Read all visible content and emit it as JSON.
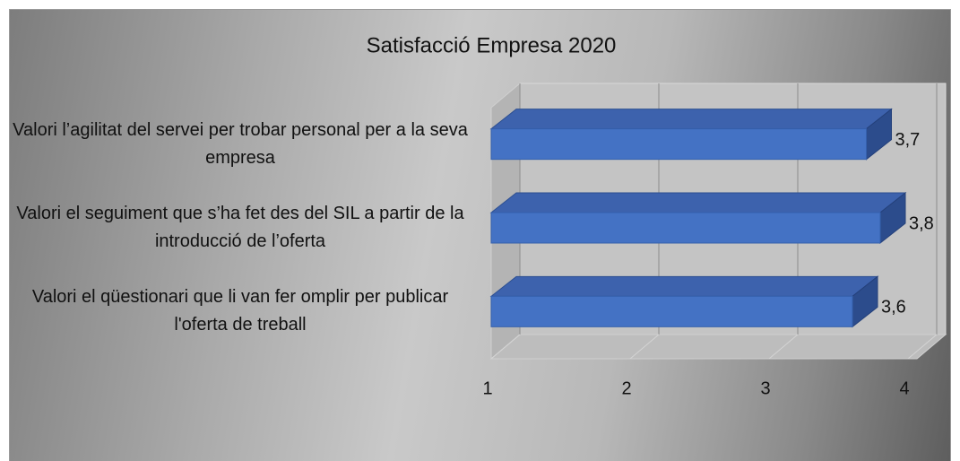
{
  "chart_data": {
    "type": "bar3d_horizontal",
    "title": "Satisfacció Empresa 2020",
    "categories": [
      "Valori  l’agilitat del servei per trobar personal per a la seva empresa",
      "Valori el seguiment que s’ha fet des del SIL a partir de la introducció de l’oferta",
      "Valori el qüestionari que li van fer omplir per publicar l'oferta de treball"
    ],
    "values": [
      3.7,
      3.8,
      3.6
    ],
    "value_labels": [
      "3,7",
      "3,8",
      "3,6"
    ],
    "color": "#4472c4",
    "xlim": [
      1,
      4
    ],
    "xticks": [
      1,
      2,
      3,
      4
    ],
    "grid": true
  }
}
